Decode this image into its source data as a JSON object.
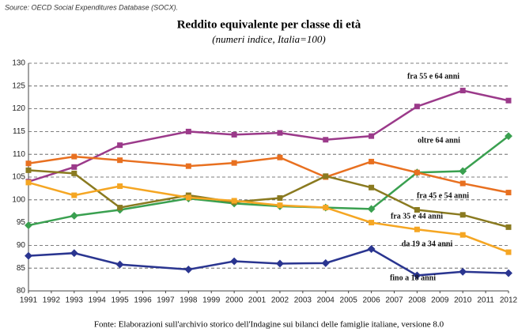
{
  "source": "Source: OECD Social Expenditures Database (SOCX).",
  "footer": "Fonte: Elaborazioni sull'archivio storico dell'Indagine sui bilanci delle famiglie italiane, versione 8.0",
  "chart_data": {
    "type": "line",
    "title": "Reddito equivalente per classe di età",
    "subtitle": "(numeri indice, Italia=100)",
    "x": [
      1991,
      1993,
      1995,
      1998,
      2000,
      2002,
      2004,
      2006,
      2008,
      2010,
      2012
    ],
    "xlim": [
      1991,
      2012
    ],
    "xticks": [
      1991,
      1992,
      1993,
      1994,
      1995,
      1996,
      1997,
      1998,
      1999,
      2000,
      2001,
      2002,
      2003,
      2004,
      2005,
      2006,
      2007,
      2008,
      2009,
      2010,
      2011,
      2012
    ],
    "ylim": [
      80,
      130
    ],
    "yticks": [
      80,
      85,
      90,
      95,
      100,
      105,
      110,
      115,
      120,
      125,
      130
    ],
    "grid": true,
    "series": [
      {
        "name": "fra 55 e 64 anni",
        "color": "#9b3a8a",
        "values": [
          104,
          107.2,
          112,
          115,
          114.3,
          114.7,
          113.2,
          114,
          120.5,
          124,
          121.8
        ]
      },
      {
        "name": "oltre 64 anni",
        "color": "#3aa050",
        "values": [
          94.4,
          96.5,
          97.8,
          100.3,
          99.2,
          98.6,
          98.3,
          98,
          106,
          106.3,
          114
        ]
      },
      {
        "name": "fra 45 e 54 anni",
        "color": "#e87020",
        "values": [
          108,
          109.5,
          108.7,
          107.4,
          108.1,
          109.3,
          105,
          108.4,
          106,
          103.6,
          101.6
        ]
      },
      {
        "name": "fra 35 e 44 anni",
        "color": "#8a7a20",
        "values": [
          106.5,
          105.8,
          98.3,
          101,
          99.5,
          100.4,
          105.2,
          102.7,
          97.8,
          96.7,
          94
        ]
      },
      {
        "name": "da 19 a 34 anni",
        "color": "#f5a623",
        "values": [
          103.8,
          101,
          103,
          100.5,
          99.8,
          98.8,
          98.3,
          95,
          93.5,
          92.3,
          88.5
        ]
      },
      {
        "name": "fino a 18 anni",
        "color": "#2a3590",
        "values": [
          87.7,
          88.3,
          85.8,
          84.7,
          86.5,
          86,
          86.1,
          89.2,
          83.4,
          84.2,
          83.9
        ]
      }
    ]
  }
}
